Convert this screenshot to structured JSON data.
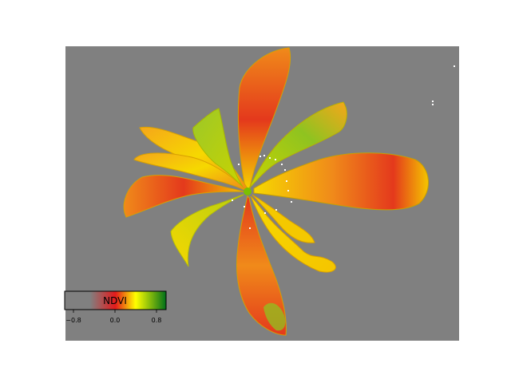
{
  "colorbar": {
    "label": "NDVI",
    "ticks": [
      "−0.8",
      "0.0",
      "0.8"
    ],
    "range": [
      -1.0,
      1.0
    ],
    "colormap": [
      {
        "value": -1.0,
        "color": "#808080"
      },
      {
        "value": -0.5,
        "color": "#808080"
      },
      {
        "value": 0.0,
        "color": "#e41a1c"
      },
      {
        "value": 0.4,
        "color": "#ffff00"
      },
      {
        "value": 1.0,
        "color": "#00701a"
      }
    ]
  },
  "colors": {
    "background": "#808080",
    "leaf_red": "#e4391c",
    "leaf_orange": "#f08a1a",
    "leaf_yellow": "#f6d800",
    "leaf_green": "#8fc320"
  }
}
